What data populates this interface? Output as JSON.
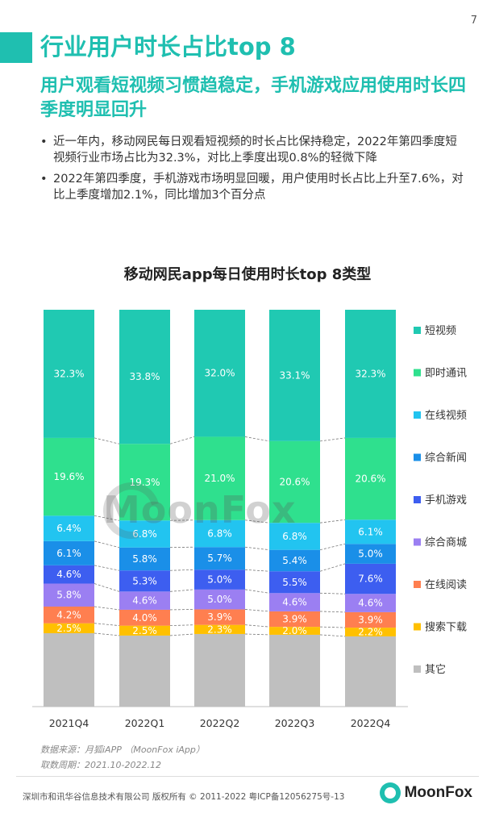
{
  "page": {
    "number": "7",
    "title": "行业用户时长占比top 8",
    "subtitle": "用户观看短视频习惯趋稳定，手机游戏应用使用时长四季度明显回升",
    "bullets": [
      "近一年内，移动网民每日观看短视频的时长占比保持稳定，2022年第四季度短视频行业市场占比为32.3%，对比上季度出现0.8%的轻微下降",
      "2022年第四季度，手机游戏市场明显回暖，用户使用时长占比上升至7.6%，对比上季度增加2.1%，同比增加3个百分点"
    ],
    "watermark": "MoonFox",
    "source_line1": "数据来源：月狐iAPP （MoonFox iApp）",
    "source_line2": "取数周期：2021.10-2022.12",
    "footer_text": "深圳市和讯华谷信息技术有限公司 版权所有 © 2011-2022 粤ICP备12056275号-13",
    "footer_logo": "MoonFox"
  },
  "chart_data": {
    "type": "bar",
    "stacked": true,
    "normalized": true,
    "title": "移动网民app每日使用时长top 8类型",
    "categories": [
      "2021Q4",
      "2022Q1",
      "2022Q2",
      "2022Q3",
      "2022Q4"
    ],
    "series": [
      {
        "name": "其它",
        "color": "#bfbfbf",
        "values": [
          null,
          null,
          null,
          null,
          null
        ]
      },
      {
        "name": "搜索下载",
        "color": "#ffc000",
        "values": [
          2.5,
          2.5,
          2.3,
          2.0,
          2.2
        ]
      },
      {
        "name": "在线阅读",
        "color": "#ff7f50",
        "values": [
          4.2,
          4.0,
          3.9,
          3.9,
          3.9
        ]
      },
      {
        "name": "综合商城",
        "color": "#9b7ff2",
        "values": [
          5.8,
          4.6,
          5.0,
          4.6,
          4.6
        ]
      },
      {
        "name": "手机游戏",
        "color": "#3d5ef0",
        "values": [
          4.6,
          5.3,
          5.0,
          5.5,
          7.6
        ]
      },
      {
        "name": "综合新闻",
        "color": "#1a8fe8",
        "values": [
          6.1,
          5.8,
          5.7,
          5.4,
          5.0
        ]
      },
      {
        "name": "在线视频",
        "color": "#22c4f0",
        "values": [
          6.4,
          6.8,
          6.8,
          6.8,
          6.1
        ]
      },
      {
        "name": "即时通讯",
        "color": "#2fe08e",
        "values": [
          19.6,
          19.3,
          21.0,
          20.6,
          20.6
        ]
      },
      {
        "name": "短视频",
        "color": "#20c9b2",
        "values": [
          32.3,
          33.8,
          32.0,
          33.1,
          32.3
        ]
      }
    ],
    "data_labels": [
      [
        "",
        "2.5%",
        "4.2%",
        "5.8%",
        "4.6%",
        "6.1%",
        "6.4%",
        "19.6%",
        "32.3%"
      ],
      [
        "",
        "2.5%",
        "4.0%",
        "4.6%",
        "5.3%",
        "5.8%",
        "6.8%",
        "19.3%",
        "33.8%"
      ],
      [
        "",
        "2.3%",
        "3.9%",
        "5.0%",
        "5.0%",
        "5.7%",
        "6.8%",
        "21.0%",
        "32.0%"
      ],
      [
        "",
        "2.0%",
        "3.9%",
        "4.6%",
        "5.5%",
        "5.4%",
        "6.8%",
        "20.6%",
        "33.1%"
      ],
      [
        "",
        "2.2%",
        "3.9%",
        "4.6%",
        "7.6%",
        "5.0%",
        "6.1%",
        "20.6%",
        "32.3%"
      ]
    ],
    "ylim": [
      0,
      100
    ],
    "legend_position": "right",
    "legend_order": [
      "短视频",
      "即时通讯",
      "在线视频",
      "综合新闻",
      "手机游戏",
      "综合商城",
      "在线阅读",
      "搜索下载",
      "其它"
    ]
  }
}
